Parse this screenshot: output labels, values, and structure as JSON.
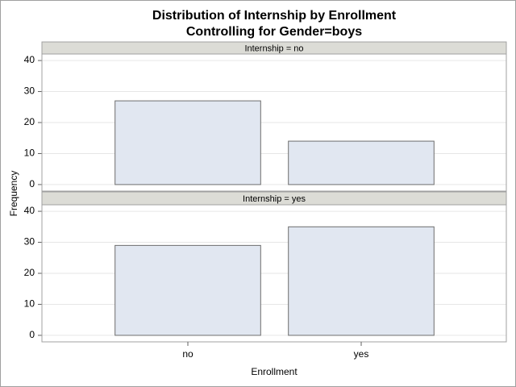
{
  "chart_data": {
    "type": "bar",
    "title": "Distribution of Internship by Enrollment",
    "subtitle": "Controlling for Gender=boys",
    "x_label": "Enrollment",
    "y_label": "Frequency",
    "categories": [
      "no",
      "yes"
    ],
    "panels": [
      {
        "label": "Internship = no",
        "values": [
          27,
          14
        ]
      },
      {
        "label": "Internship = yes",
        "values": [
          29,
          35
        ]
      }
    ],
    "color": "#e1e7f1",
    "edge_color": "#6e6e6e",
    "ylim": [
      -2.1,
      42.1
    ],
    "yticks": [
      0,
      10,
      20,
      30,
      40
    ],
    "grid": true
  }
}
